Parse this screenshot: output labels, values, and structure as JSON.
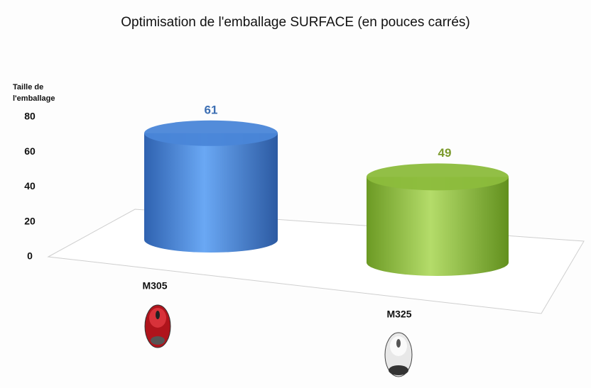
{
  "chart_data": {
    "type": "bar3d",
    "title": "Optimisation de l'emballage SURFACE (en pouces carrés)",
    "y_label": "Taille de l'emballage",
    "categories": [
      "M305",
      "M325"
    ],
    "values": [
      61,
      49
    ],
    "colors": [
      "#4a86d8",
      "#8cbc3c"
    ],
    "label_colors": [
      "#3d6fb3",
      "#7b9a2c"
    ],
    "ylim": [
      0,
      80
    ],
    "yticks": [
      0,
      20,
      40,
      60,
      80
    ]
  }
}
